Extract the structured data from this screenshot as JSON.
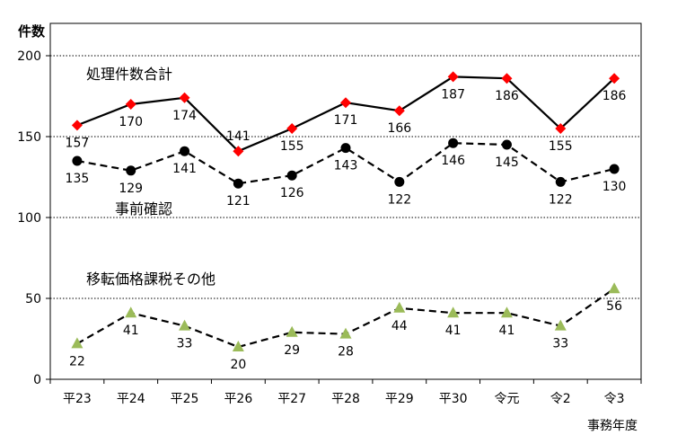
{
  "chart_data": {
    "type": "line",
    "ylabel": "件数",
    "xlabel": "事務年度",
    "ylim": [
      0,
      200
    ],
    "yticks": [
      0,
      50,
      100,
      150,
      200
    ],
    "grid": "dotted horizontal",
    "categories": [
      "平23",
      "平24",
      "平25",
      "平26",
      "平27",
      "平28",
      "平29",
      "平30",
      "令元",
      "令2",
      "令3"
    ],
    "series": [
      {
        "name": "処理件数合計",
        "values": [
          157,
          170,
          174,
          141,
          155,
          171,
          166,
          187,
          186,
          155,
          186
        ],
        "line": "solid",
        "marker": "diamond",
        "marker_color": "#ff0000",
        "line_color": "#000000",
        "label_position": [
          "below",
          "below",
          "below",
          "above",
          "below",
          "below",
          "below",
          "below",
          "below",
          "below",
          "below"
        ]
      },
      {
        "name": "事前確認",
        "values": [
          135,
          129,
          141,
          121,
          126,
          143,
          122,
          146,
          145,
          122,
          130
        ],
        "line": "dashed",
        "marker": "circle",
        "marker_color": "#000000",
        "line_color": "#000000",
        "label_position": [
          "below",
          "below",
          "below",
          "below",
          "below",
          "below",
          "below",
          "below",
          "below",
          "below",
          "below"
        ]
      },
      {
        "name": "移転価格課税その他",
        "values": [
          22,
          41,
          33,
          20,
          29,
          28,
          44,
          41,
          41,
          33,
          56
        ],
        "line": "dashed",
        "marker": "triangle",
        "marker_color": "#9bbb59",
        "line_color": "#000000",
        "label_position": [
          "below",
          "below",
          "below",
          "below",
          "below",
          "below",
          "below",
          "below",
          "below",
          "below",
          "below"
        ]
      }
    ],
    "colors": {
      "grid": "#000000",
      "axis": "#000000"
    }
  }
}
